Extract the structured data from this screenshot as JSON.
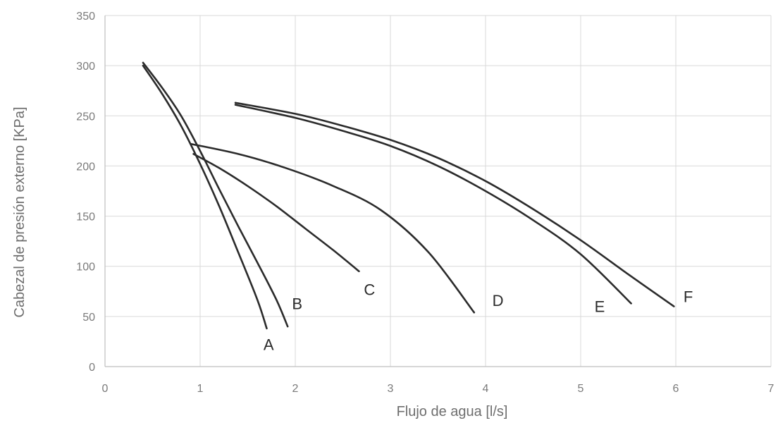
{
  "chart_data": {
    "type": "line",
    "xlabel": "Flujo de agua [l/s]",
    "ylabel": "Cabezal de presión externo [KPa]",
    "xlim": [
      0,
      7
    ],
    "ylim": [
      0,
      350
    ],
    "xticks": [
      "0",
      "1",
      "2",
      "3",
      "4",
      "5",
      "6",
      "7"
    ],
    "yticks": [
      "0",
      "50",
      "100",
      "150",
      "200",
      "250",
      "300",
      "350"
    ],
    "grid": true,
    "series": [
      {
        "name": "A",
        "points": [
          [
            0.4,
            300
          ],
          [
            0.6,
            272
          ],
          [
            0.8,
            240
          ],
          [
            1.0,
            202
          ],
          [
            1.2,
            160
          ],
          [
            1.4,
            114
          ],
          [
            1.6,
            67
          ],
          [
            1.7,
            38
          ]
        ]
      },
      {
        "name": "B",
        "points": [
          [
            0.4,
            303
          ],
          [
            0.6,
            278
          ],
          [
            0.8,
            250
          ],
          [
            1.0,
            215
          ],
          [
            1.2,
            177
          ],
          [
            1.4,
            140
          ],
          [
            1.6,
            104
          ],
          [
            1.8,
            67
          ],
          [
            1.92,
            40
          ]
        ]
      },
      {
        "name": "C",
        "points": [
          [
            0.93,
            212
          ],
          [
            1.2,
            198
          ],
          [
            1.5,
            180
          ],
          [
            1.8,
            160
          ],
          [
            2.1,
            138
          ],
          [
            2.4,
            116
          ],
          [
            2.67,
            95
          ]
        ]
      },
      {
        "name": "D",
        "points": [
          [
            0.9,
            222
          ],
          [
            1.4,
            212
          ],
          [
            1.9,
            198
          ],
          [
            2.4,
            180
          ],
          [
            2.9,
            156
          ],
          [
            3.4,
            114
          ],
          [
            3.88,
            54
          ]
        ]
      },
      {
        "name": "E",
        "points": [
          [
            1.37,
            261
          ],
          [
            2.0,
            248
          ],
          [
            2.5,
            235
          ],
          [
            3.0,
            220
          ],
          [
            3.5,
            200
          ],
          [
            4.0,
            175
          ],
          [
            4.5,
            146
          ],
          [
            5.0,
            112
          ],
          [
            5.53,
            63
          ]
        ]
      },
      {
        "name": "F",
        "points": [
          [
            1.37,
            263
          ],
          [
            2.0,
            252
          ],
          [
            2.5,
            240
          ],
          [
            3.0,
            226
          ],
          [
            3.5,
            208
          ],
          [
            4.0,
            185
          ],
          [
            4.5,
            157
          ],
          [
            5.0,
            126
          ],
          [
            5.5,
            92
          ],
          [
            5.98,
            60
          ]
        ]
      }
    ],
    "labels": [
      {
        "text": "A",
        "x": 1.72,
        "y": 22
      },
      {
        "text": "B",
        "x": 2.02,
        "y": 63
      },
      {
        "text": "C",
        "x": 2.78,
        "y": 77
      },
      {
        "text": "D",
        "x": 4.13,
        "y": 66
      },
      {
        "text": "E",
        "x": 5.2,
        "y": 60
      },
      {
        "text": "F",
        "x": 6.13,
        "y": 70
      }
    ]
  }
}
